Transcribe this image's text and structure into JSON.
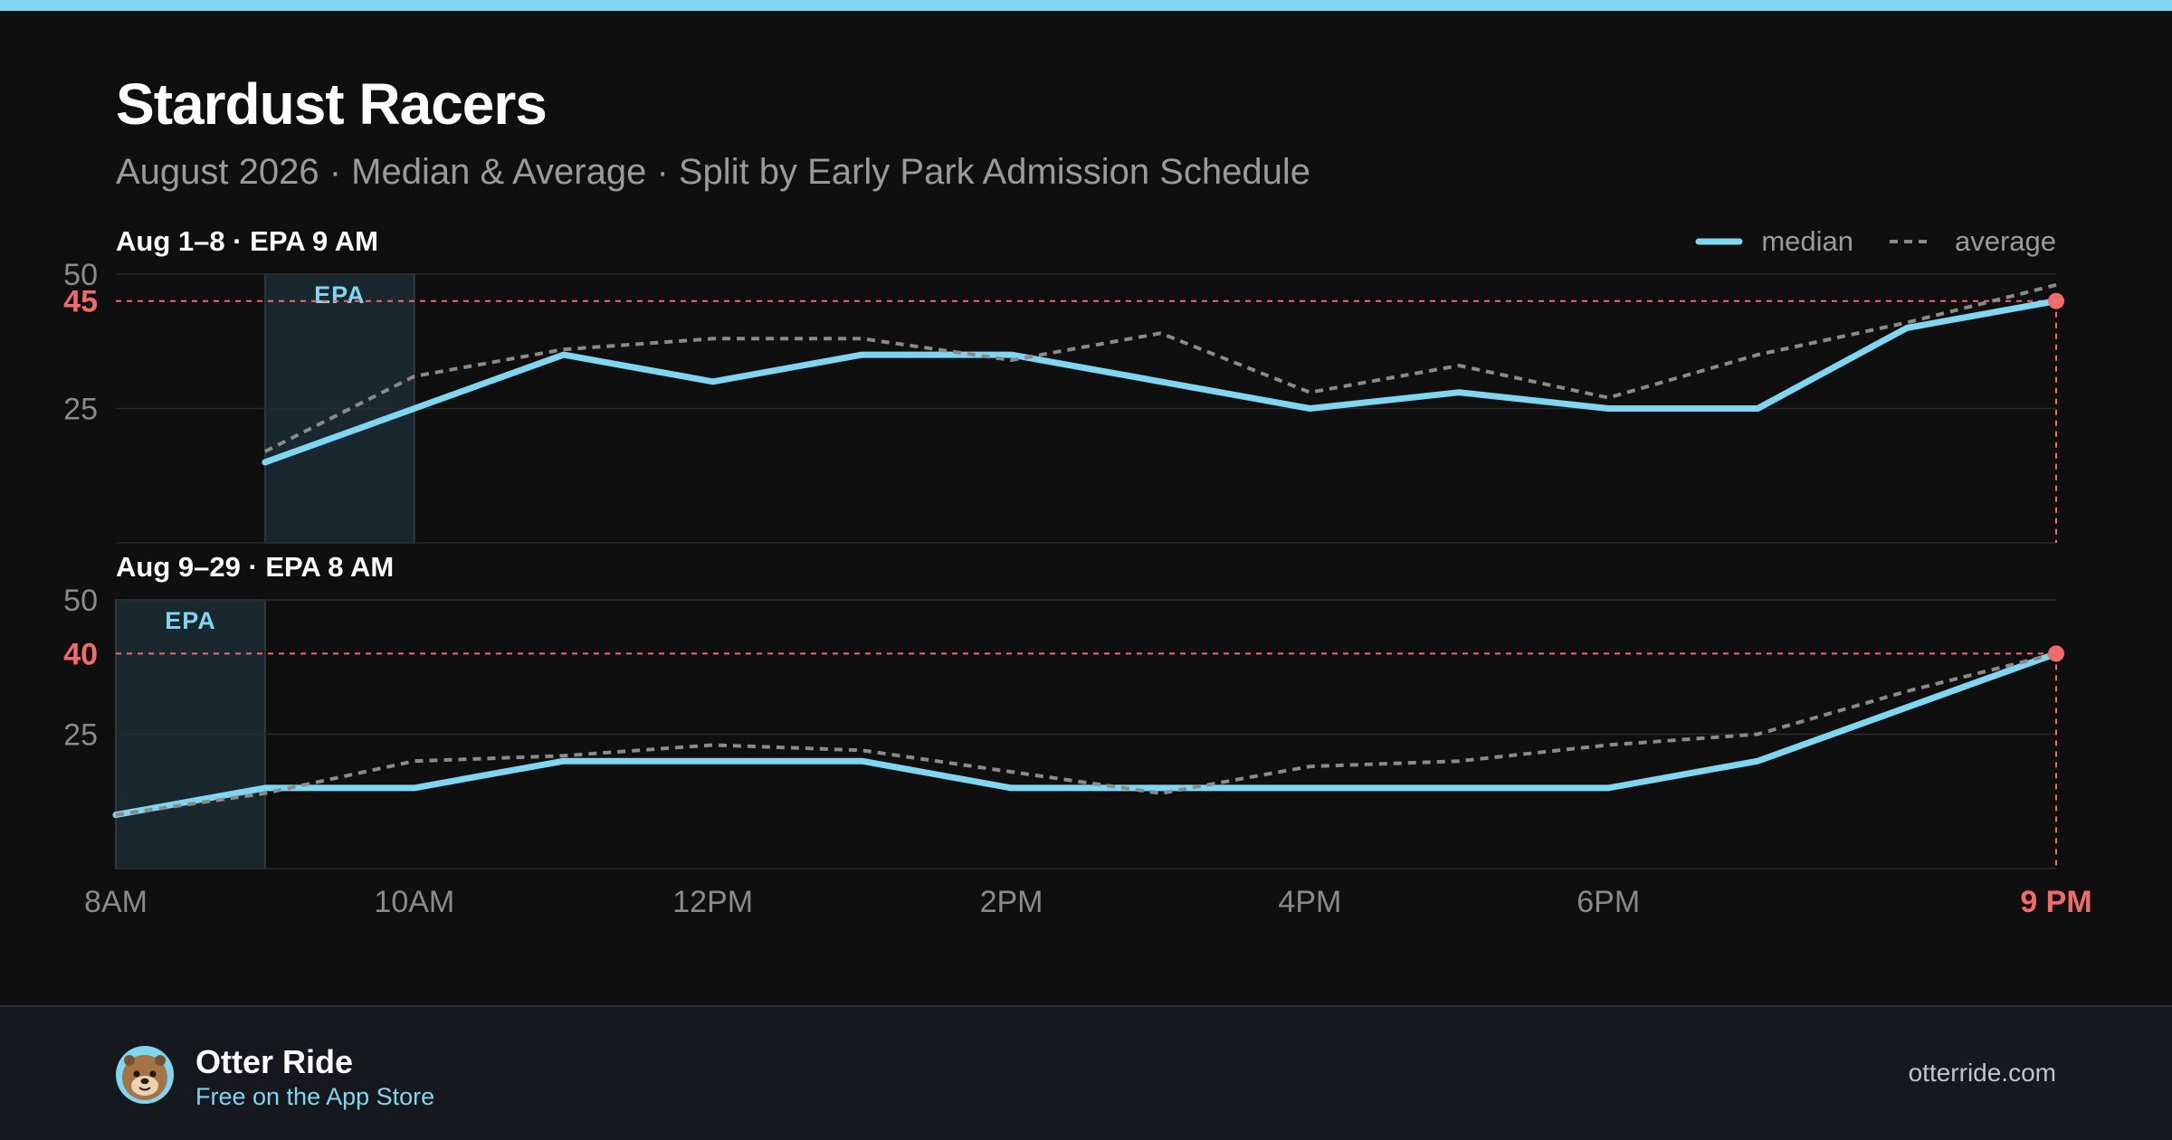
{
  "title": "Stardust Racers",
  "subtitle": "August 2026 · Median & Average · Split by Early Park Admission Schedule",
  "colors": {
    "accent": "#7fd6f0",
    "median": "#7fd6f0",
    "average": "#8a8a8a",
    "highlight": "#f26b6b",
    "background": "#0f0f10",
    "footer": "#15191e"
  },
  "footer": {
    "brand_name": "Otter Ride",
    "tagline": "Free on the App Store",
    "url": "otterride.com",
    "avatar_icon": "otter-avatar-icon"
  },
  "chart_data": [
    {
      "type": "line",
      "panel_title": "Aug 1–8 · EPA 9 AM",
      "x": [
        "9AM",
        "10AM",
        "11AM",
        "12PM",
        "1PM",
        "2PM",
        "3PM",
        "4PM",
        "5PM",
        "6PM",
        "7PM",
        "8PM",
        "9PM"
      ],
      "series": [
        {
          "name": "median",
          "values": [
            15,
            25,
            35,
            30,
            35,
            35,
            30,
            25,
            28,
            25,
            25,
            40,
            45
          ]
        },
        {
          "name": "average",
          "values": [
            17,
            31,
            36,
            38,
            38,
            34,
            39,
            28,
            33,
            27,
            35,
            41,
            48
          ]
        }
      ],
      "ylim": [
        0,
        50
      ],
      "yticks": [
        25,
        50
      ],
      "highlight": {
        "value": 45,
        "label": "45"
      },
      "epa_band": {
        "start": "9AM",
        "end": "10AM",
        "label": "EPA"
      },
      "legend": {
        "position": "top-right",
        "items": [
          "median",
          "average"
        ]
      }
    },
    {
      "type": "line",
      "panel_title": "Aug 9–29 · EPA 8 AM",
      "x": [
        "8AM",
        "9AM",
        "10AM",
        "11AM",
        "12PM",
        "1PM",
        "2PM",
        "3PM",
        "4PM",
        "5PM",
        "6PM",
        "7PM",
        "8PM",
        "9PM"
      ],
      "series": [
        {
          "name": "median",
          "values": [
            10,
            15,
            15,
            20,
            20,
            20,
            15,
            15,
            15,
            15,
            15,
            20,
            30,
            40
          ]
        },
        {
          "name": "average",
          "values": [
            10,
            14,
            20,
            21,
            23,
            22,
            18,
            14,
            19,
            20,
            23,
            25,
            33,
            40
          ]
        }
      ],
      "ylim": [
        0,
        50
      ],
      "yticks": [
        25,
        50
      ],
      "highlight": {
        "value": 40,
        "label": "40"
      },
      "epa_band": {
        "start": "8AM",
        "end": "9AM",
        "label": "EPA"
      }
    }
  ],
  "x_axis": {
    "ticks": [
      {
        "hour": 8,
        "label": "8AM"
      },
      {
        "hour": 10,
        "label": "10AM"
      },
      {
        "hour": 12,
        "label": "12PM"
      },
      {
        "hour": 14,
        "label": "2PM"
      },
      {
        "hour": 16,
        "label": "4PM"
      },
      {
        "hour": 18,
        "label": "6PM"
      }
    ],
    "end_tick": {
      "hour": 21,
      "label": "9 PM"
    }
  }
}
